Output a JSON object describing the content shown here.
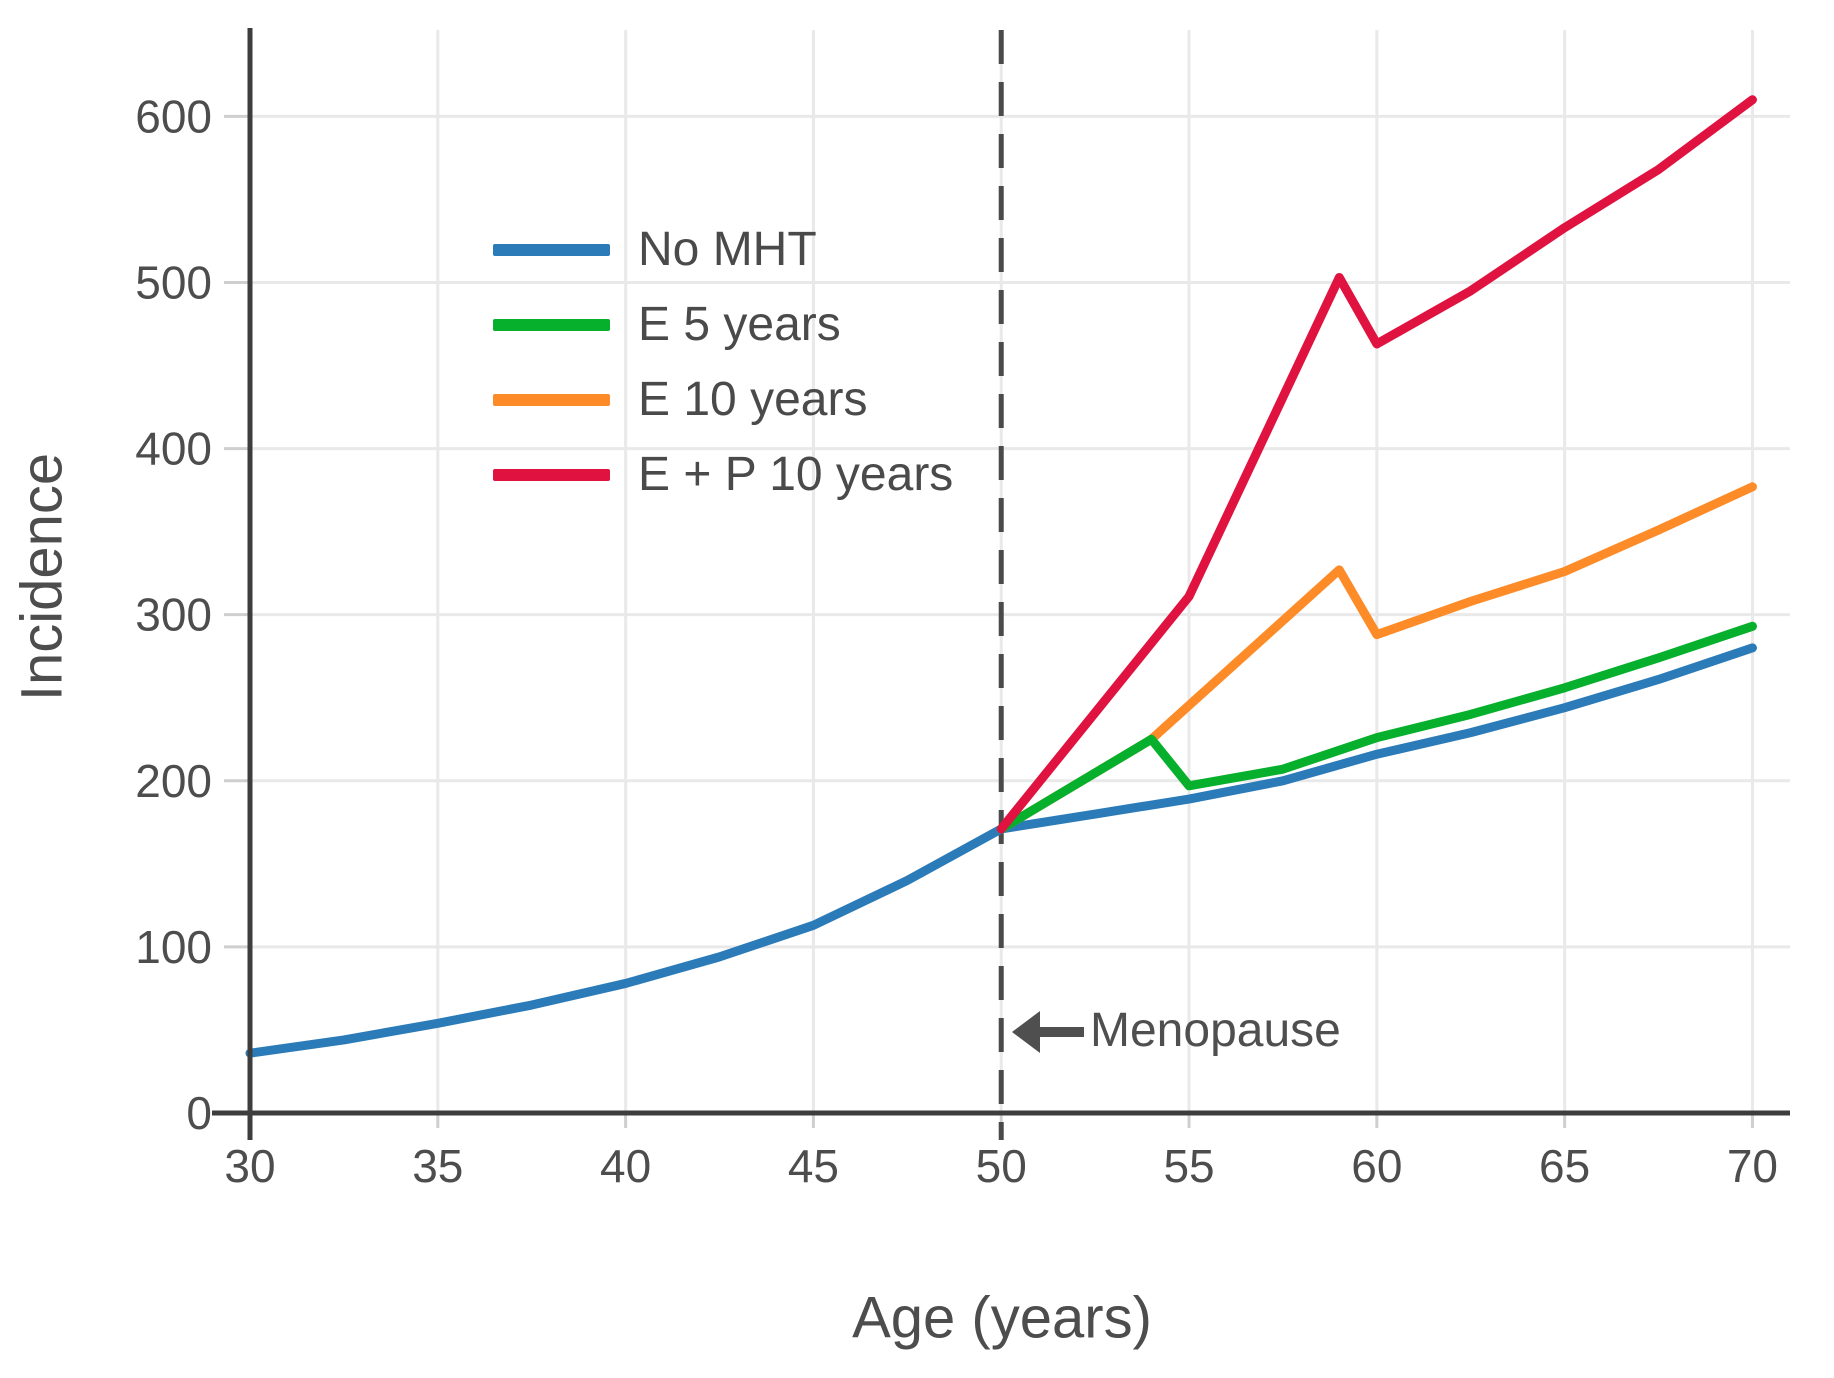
{
  "chart_data": {
    "type": "line",
    "title": "",
    "xlabel": "Age (years)",
    "ylabel": "Incidence",
    "xlim": [
      30,
      71
    ],
    "ylim": [
      0,
      652
    ],
    "xticks": [
      30,
      35,
      40,
      45,
      50,
      55,
      60,
      65,
      70
    ],
    "yticks": [
      0,
      100,
      200,
      300,
      400,
      500,
      600
    ],
    "grid": true,
    "legend_position": "upper-left-inside",
    "vline": {
      "x": 50,
      "style": "dashed",
      "color": "#4a4a4a"
    },
    "annotation": {
      "text": "Menopause",
      "arrow": "left",
      "x": 50,
      "y": 49
    },
    "series": [
      {
        "name": "No MHT",
        "color": "#2b7bb9",
        "points": [
          [
            30,
            36
          ],
          [
            32.5,
            44
          ],
          [
            35,
            54
          ],
          [
            37.5,
            65
          ],
          [
            40,
            78
          ],
          [
            42.5,
            94
          ],
          [
            45,
            113
          ],
          [
            47.5,
            140
          ],
          [
            50,
            171
          ],
          [
            52.5,
            180
          ],
          [
            55,
            189
          ],
          [
            57.5,
            200
          ],
          [
            60,
            216
          ],
          [
            62.5,
            229
          ],
          [
            65,
            244
          ],
          [
            67.5,
            261
          ],
          [
            70,
            280
          ]
        ]
      },
      {
        "name": "E 5 years",
        "color": "#06b02c",
        "points": [
          [
            50,
            171
          ],
          [
            54,
            225
          ],
          [
            55,
            197
          ],
          [
            57.5,
            207
          ],
          [
            60,
            226
          ],
          [
            62.5,
            240
          ],
          [
            65,
            256
          ],
          [
            67.5,
            274
          ],
          [
            70,
            293
          ]
        ]
      },
      {
        "name": "E 10 years",
        "color": "#fd8b28",
        "points": [
          [
            50,
            171
          ],
          [
            54,
            225
          ],
          [
            59,
            327
          ],
          [
            60,
            288
          ],
          [
            62.5,
            308
          ],
          [
            65,
            326
          ],
          [
            67.5,
            351
          ],
          [
            70,
            377
          ]
        ]
      },
      {
        "name": "E + P 10 years",
        "color": "#e0123f",
        "points": [
          [
            50,
            171
          ],
          [
            55,
            311
          ],
          [
            59,
            503
          ],
          [
            60,
            463
          ],
          [
            62.5,
            495
          ],
          [
            65,
            533
          ],
          [
            67.5,
            568
          ],
          [
            70,
            610
          ]
        ]
      }
    ]
  }
}
